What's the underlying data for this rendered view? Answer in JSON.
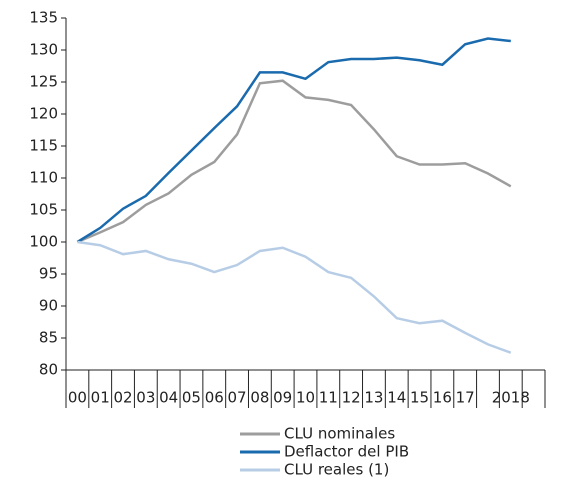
{
  "chart_data": {
    "type": "line",
    "categories": [
      "00",
      "01",
      "02",
      "03",
      "04",
      "05",
      "06",
      "07",
      "08",
      "09",
      "10",
      "11",
      "12",
      "13",
      "14",
      "15",
      "16",
      "17",
      null,
      "2018",
      null
    ],
    "series": [
      {
        "name": "CLU nominales",
        "color": "#9d9d9d",
        "values": [
          100,
          101.5,
          103.1,
          105.8,
          107.6,
          110.5,
          112.5,
          116.8,
          124.8,
          125.2,
          122.6,
          122.2,
          121.4,
          117.6,
          113.4,
          112.1,
          112.1,
          112.3,
          110.7,
          108.7,
          null
        ]
      },
      {
        "name": "Deflactor del PIB",
        "color": "#1a6aae",
        "values": [
          100,
          102.2,
          105.2,
          107.2,
          110.8,
          114.3,
          117.8,
          121.2,
          126.5,
          126.5,
          125.5,
          128.1,
          128.6,
          128.6,
          128.8,
          128.4,
          127.7,
          130.9,
          131.8,
          131.4,
          null
        ]
      },
      {
        "name": "CLU reales (1)",
        "color": "#b7cde6",
        "values": [
          100,
          99.5,
          98.1,
          98.6,
          97.3,
          96.6,
          95.3,
          96.4,
          98.6,
          99.1,
          97.7,
          95.3,
          94.4,
          91.5,
          88.1,
          87.3,
          87.7,
          85.8,
          84.0,
          82.7,
          null
        ]
      }
    ],
    "ylim": [
      80,
      135
    ],
    "yticks": [
      80,
      85,
      90,
      95,
      100,
      105,
      110,
      115,
      120,
      125,
      130,
      135
    ],
    "grid": false,
    "legend": "bottom"
  }
}
